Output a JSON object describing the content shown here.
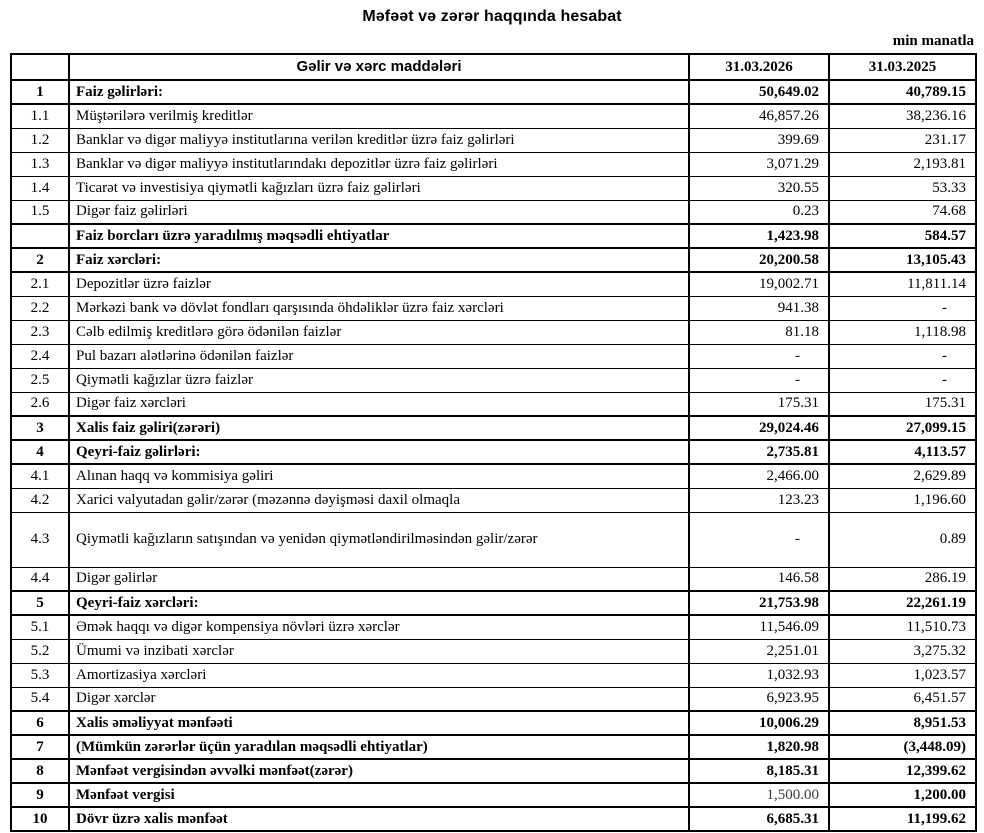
{
  "title": "Məfəət və zərər haqqında hesabat",
  "unit_label": "min manatla",
  "table": {
    "headers": {
      "items_column": "Gəlir və xərc maddələri",
      "col_2026": "31.03.2026",
      "col_2025": "31.03.2025"
    },
    "rows": [
      {
        "num": "1",
        "label": "Faiz gəlirləri:",
        "v2026": "50,649.02",
        "v2025": "40,789.15",
        "section": true
      },
      {
        "num": "1.1",
        "label": "Müştərilərə verilmiş kreditlər",
        "v2026": "46,857.26",
        "v2025": "38,236.16"
      },
      {
        "num": "1.2",
        "label": "Banklar və digər maliyyə institutlarına verilən kreditlər üzrə faiz gəlirləri",
        "v2026": "399.69",
        "v2025": "231.17"
      },
      {
        "num": "1.3",
        "label": "Banklar və digər maliyyə institutlarındakı depozitlər üzrə faiz gəlirləri",
        "v2026": "3,071.29",
        "v2025": "2,193.81"
      },
      {
        "num": "1.4",
        "label": "Ticarət və investisiya qiymətli kağızları üzrə faiz gəlirləri",
        "v2026": "320.55",
        "v2025": "53.33"
      },
      {
        "num": "1.5",
        "label": "Digər faiz gəlirləri",
        "v2026": "0.23",
        "v2025": "74.68"
      },
      {
        "num": "",
        "label": "Faiz borcları üzrə yaradılmış məqsədli ehtiyatlar",
        "v2026": "1,423.98",
        "v2025": "584.57",
        "section": true
      },
      {
        "num": "2",
        "label": "Faiz xərcləri:",
        "v2026": "20,200.58",
        "v2025": "13,105.43",
        "section": true
      },
      {
        "num": "2.1",
        "label": "Depozitlər üzrə faizlər",
        "v2026": "19,002.71",
        "v2025": "11,811.14"
      },
      {
        "num": "2.2",
        "label": "Mərkəzi bank və dövlət fondları qarşısında öhdəliklər üzrə faiz xərcləri",
        "v2026": "941.38",
        "v2025": "-"
      },
      {
        "num": "2.3",
        "label": "Cəlb edilmiş kreditlərə görə ödənilən faizlər",
        "v2026": "81.18",
        "v2025": "1,118.98"
      },
      {
        "num": "2.4",
        "label": "Pul bazarı alətlərinə ödənilən faizlər",
        "v2026": "-",
        "v2025": "-"
      },
      {
        "num": "2.5",
        "label": "Qiymətli kağızlar üzrə faizlər",
        "v2026": "-",
        "v2025": "-"
      },
      {
        "num": "2.6",
        "label": "Digər faiz xərcləri",
        "v2026": "175.31",
        "v2025": "175.31"
      },
      {
        "num": "3",
        "label": "Xalis faiz gəliri(zərəri)",
        "v2026": "29,024.46",
        "v2025": "27,099.15",
        "section": true
      },
      {
        "num": "4",
        "label": "Qeyri-faiz gəlirləri:",
        "v2026": "2,735.81",
        "v2025": "4,113.57",
        "section": true
      },
      {
        "num": "4.1",
        "label": "Alınan haqq və kommisiya gəliri",
        "v2026": "2,466.00",
        "v2025": "2,629.89"
      },
      {
        "num": "4.2",
        "label": "Xarici valyutadan gəlir/zərər (məzənnə dəyişməsi daxil olmaqla",
        "v2026": "123.23",
        "v2025": "1,196.60"
      },
      {
        "num": "4.3",
        "label": "Qiymətli kağızların satışından və yenidən qiymətləndirilməsindən gəlir/zərər",
        "v2026": "-",
        "v2025": "0.89",
        "tall": true
      },
      {
        "num": "4.4",
        "label": "Digər gəlirlər",
        "v2026": "146.58",
        "v2025": "286.19"
      },
      {
        "num": "5",
        "label": "Qeyri-faiz xərcləri:",
        "v2026": "21,753.98",
        "v2025": "22,261.19",
        "section": true
      },
      {
        "num": "5.1",
        "label": "Əmək haqqı və digər kompensiya növləri üzrə xərclər",
        "v2026": "11,546.09",
        "v2025": "11,510.73"
      },
      {
        "num": "5.2",
        "label": "Ümumi və inzibati xərclər",
        "v2026": "2,251.01",
        "v2025": "3,275.32"
      },
      {
        "num": "5.3",
        "label": "Amortizasiya xərcləri",
        "v2026": "1,032.93",
        "v2025": "1,023.57"
      },
      {
        "num": "5.4",
        "label": "Digər xərclər",
        "v2026": "6,923.95",
        "v2025": "6,451.57"
      },
      {
        "num": "6",
        "label": "Xalis əməliyyat mənfəəti",
        "v2026": "10,006.29",
        "v2025": "8,951.53",
        "section": true
      },
      {
        "num": "7",
        "label": "(Mümkün zərərlər üçün yaradılan məqsədli ehtiyatlar)",
        "v2026": "1,820.98",
        "v2025": "(3,448.09)",
        "section": true
      },
      {
        "num": "8",
        "label": "Mənfəət vergisindən əvvəlki mənfəət(zərər)",
        "v2026": "8,185.31",
        "v2025": "12,399.62",
        "section": true
      },
      {
        "num": "9",
        "label": "Mənfəət vergisi",
        "v2026": "1,500.00",
        "v2025": "1,200.00",
        "section": true,
        "v2026_regular": true
      },
      {
        "num": "10",
        "label": "Dövr üzrə xalis mənfəət",
        "v2026": "6,685.31",
        "v2025": "11,199.62",
        "section": true
      }
    ]
  },
  "colors": {
    "text": "#000000",
    "border": "#000000",
    "background": "#ffffff",
    "muted_value": "#3c3c3c"
  }
}
